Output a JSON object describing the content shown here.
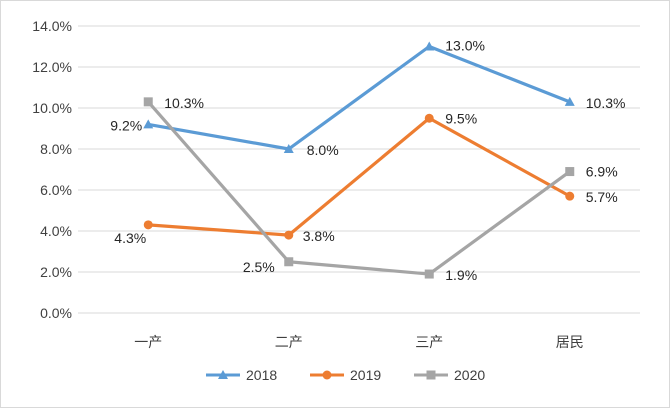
{
  "chart_data": {
    "type": "line",
    "title": "",
    "xlabel": "",
    "ylabel": "",
    "categories": [
      "一产",
      "二产",
      "三产",
      "居民"
    ],
    "ylim": [
      0,
      14
    ],
    "ytick_step": 2,
    "ytick_labels": [
      "0.0%",
      "2.0%",
      "4.0%",
      "6.0%",
      "8.0%",
      "10.0%",
      "12.0%",
      "14.0%"
    ],
    "grid": true,
    "legend_position": "bottom",
    "series": [
      {
        "name": "2018",
        "color": "#5B9BD5",
        "marker": "triangle",
        "values": [
          9.2,
          8.0,
          13.0,
          10.3
        ],
        "labels": [
          "9.2%",
          "8.0%",
          "13.0%",
          "10.3%"
        ]
      },
      {
        "name": "2019",
        "color": "#ED7D31",
        "marker": "circle",
        "values": [
          4.3,
          3.8,
          9.5,
          5.7
        ],
        "labels": [
          "4.3%",
          "3.8%",
          "9.5%",
          "5.7%"
        ]
      },
      {
        "name": "2020",
        "color": "#A5A5A5",
        "marker": "square",
        "values": [
          10.3,
          2.5,
          1.9,
          6.9
        ],
        "labels": [
          "10.3%",
          "2.5%",
          "1.9%",
          "6.9%"
        ]
      }
    ]
  }
}
